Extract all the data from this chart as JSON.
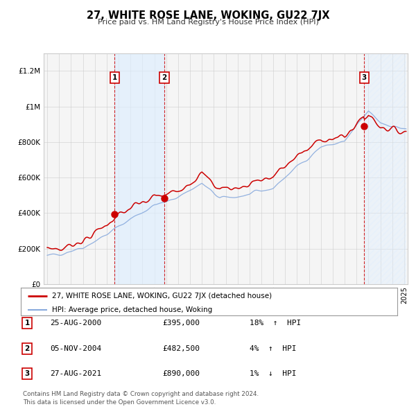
{
  "title": "27, WHITE ROSE LANE, WOKING, GU22 7JX",
  "subtitle": "Price paid vs. HM Land Registry's House Price Index (HPI)",
  "hpi_label": "HPI: Average price, detached house, Woking",
  "prop_label": "27, WHITE ROSE LANE, WOKING, GU22 7JX (detached house)",
  "transactions": [
    {
      "num": 1,
      "date": "25-AUG-2000",
      "price": 395000,
      "pct": "18%",
      "dir": "↑"
    },
    {
      "num": 2,
      "date": "05-NOV-2004",
      "price": 482500,
      "pct": "4%",
      "dir": "↑"
    },
    {
      "num": 3,
      "date": "27-AUG-2021",
      "price": 890000,
      "pct": "1%",
      "dir": "↓"
    }
  ],
  "transaction_years": [
    2000.65,
    2004.84,
    2021.65
  ],
  "transaction_prices": [
    395000,
    482500,
    890000
  ],
  "bg_color": "#ffffff",
  "plot_bg": "#f5f5f5",
  "red_color": "#cc0000",
  "blue_color": "#88aadd",
  "grid_color": "#cccccc",
  "shade_color": "#ddeeff",
  "ylim": [
    0,
    1300000
  ],
  "yticks": [
    0,
    200000,
    400000,
    600000,
    800000,
    1000000,
    1200000
  ],
  "ytick_labels": [
    "£0",
    "£200K",
    "£400K",
    "£600K",
    "£800K",
    "£1M",
    "£1.2M"
  ],
  "footer": "Contains HM Land Registry data © Crown copyright and database right 2024.\nThis data is licensed under the Open Government Licence v3.0."
}
